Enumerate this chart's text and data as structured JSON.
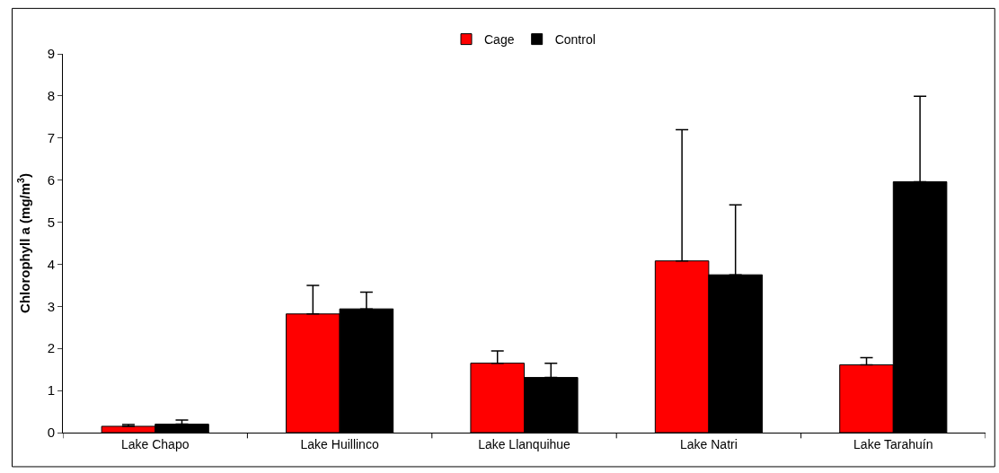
{
  "chart_data": {
    "type": "bar",
    "ylabel": "Chlorophyll a (mg/m$^{3}$)",
    "categories": [
      "Lake Chapo",
      "Lake Huillinco",
      "Lake Llanquihue",
      "Lake Natri",
      "Lake Tarahuín"
    ],
    "series": [
      {
        "name": "Cage",
        "color": "#ff0000",
        "values": [
          0.15,
          2.82,
          1.65,
          4.08,
          1.61
        ],
        "errors": [
          [
            0.15,
            0.19
          ],
          [
            2.82,
            3.5
          ],
          [
            1.65,
            1.94
          ],
          [
            4.08,
            7.2
          ],
          [
            1.61,
            1.78
          ]
        ]
      },
      {
        "name": "Control",
        "color": "#000000",
        "values": [
          0.2,
          2.94,
          1.31,
          3.75,
          5.96
        ],
        "errors": [
          [
            0.2,
            0.3
          ],
          [
            2.94,
            3.34
          ],
          [
            1.31,
            1.65
          ],
          [
            3.75,
            5.41
          ],
          [
            5.96,
            7.99
          ]
        ]
      }
    ],
    "ylim": [
      0,
      9
    ],
    "yticks": [
      0,
      1,
      2,
      3,
      4,
      5,
      6,
      7,
      8,
      9
    ],
    "legend": "top"
  }
}
